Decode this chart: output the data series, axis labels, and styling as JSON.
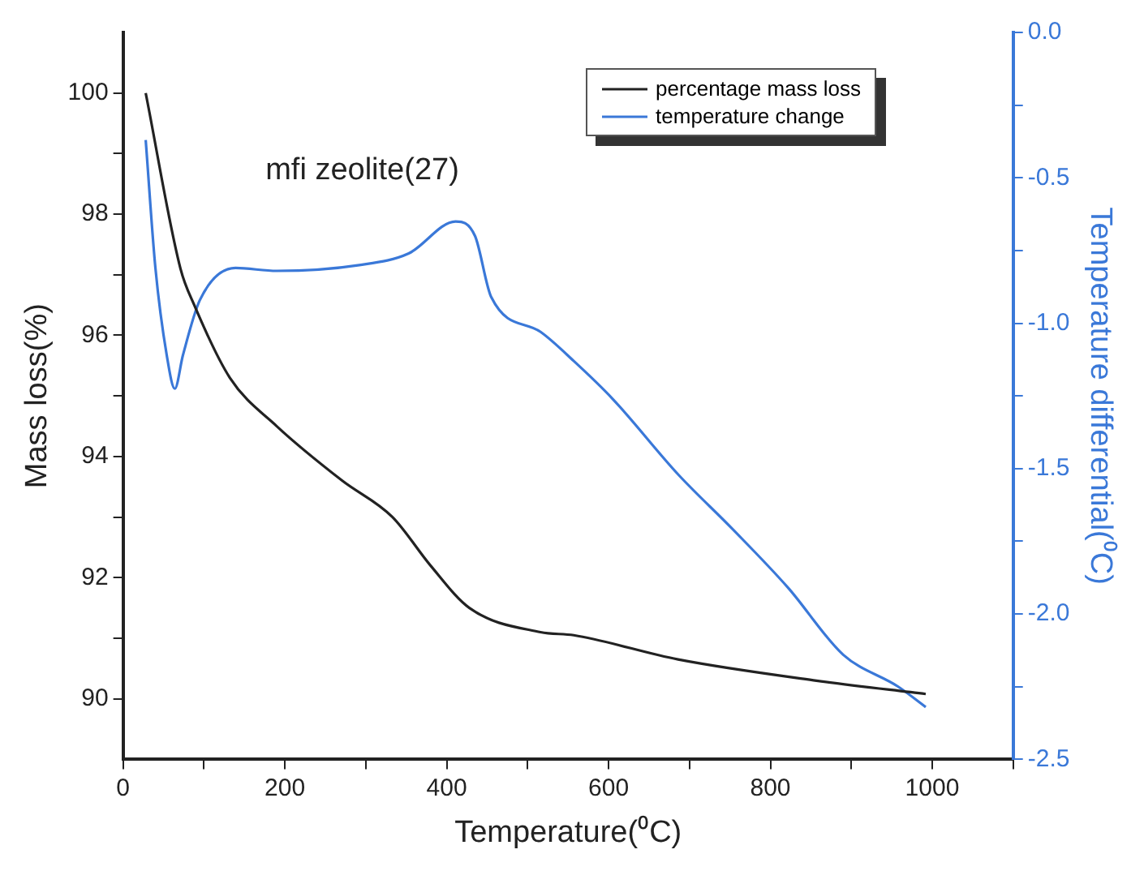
{
  "chart_data": {
    "type": "line",
    "xlabel": "Temperature(⁰C)",
    "ylabel": "Mass loss(%)",
    "y2label": "Temperature differential(⁰C)",
    "annotations": [
      "mfi zeolite(27)"
    ],
    "xlim": [
      0,
      1100
    ],
    "xticks": [
      0,
      {
        "value": 100,
        "label": null
      },
      200,
      {
        "value": 300,
        "label": null
      },
      400,
      {
        "value": 500,
        "label": null
      },
      600,
      {
        "value": 700,
        "label": null
      },
      800,
      {
        "value": 900,
        "label": null
      },
      1000,
      {
        "value": 1100,
        "label": null
      }
    ],
    "ylim": [
      89,
      101
    ],
    "yticks": [
      90,
      {
        "value": 91,
        "label": null
      },
      92,
      {
        "value": 93,
        "label": null
      },
      94,
      {
        "value": 95,
        "label": null
      },
      96,
      {
        "value": 97,
        "label": null
      },
      98,
      {
        "value": 99,
        "label": null
      },
      100
    ],
    "y2lim": [
      -2.5,
      0
    ],
    "y2ticks": [
      {
        "value": -2.5,
        "label": "-2.5"
      },
      {
        "value": -2.25,
        "label": null
      },
      {
        "value": -2,
        "label": "-2.0"
      },
      {
        "value": -1.75,
        "label": null
      },
      {
        "value": -1.5,
        "label": "-1.5"
      },
      {
        "value": -1.25,
        "label": null
      },
      {
        "value": -1,
        "label": "-1.0"
      },
      {
        "value": -0.75,
        "label": null
      },
      {
        "value": -0.5,
        "label": "-0.5"
      },
      {
        "value": -0.25,
        "label": null
      },
      {
        "value": 0,
        "label": "0.0"
      }
    ],
    "grid": false,
    "legend": "top right",
    "marker": "none",
    "line_style": "solid",
    "series": [
      {
        "name": "percentage mass loss",
        "color": "#222222",
        "x": [
          28,
          71,
          88,
          132,
          190,
          271,
          333,
          380,
          428,
          516,
          557,
          686,
          857,
          992
        ],
        "values": [
          100.0,
          97.1,
          96.5,
          95.3,
          94.5,
          93.6,
          93.0,
          92.2,
          91.5,
          91.1,
          91.05,
          90.65,
          90.3,
          90.08
        ]
      },
      {
        "name": "temperature change",
        "color": "#3a78d8",
        "axis": "y2",
        "x": [
          28,
          40,
          54,
          64,
          74,
          95,
          139,
          190,
          292,
          353,
          411,
          435,
          455,
          516,
          557,
          605,
          686,
          754,
          822,
          890,
          958,
          992
        ],
        "values": [
          -0.37,
          -0.81,
          -1.11,
          -1.225,
          -1.11,
          -0.92,
          -0.81,
          -0.82,
          -0.8,
          -0.76,
          -0.65,
          -0.7,
          -0.91,
          -1.03,
          -1.13,
          -1.26,
          -1.52,
          -1.71,
          -1.91,
          -2.14,
          -2.25,
          -2.32
        ]
      }
    ]
  }
}
